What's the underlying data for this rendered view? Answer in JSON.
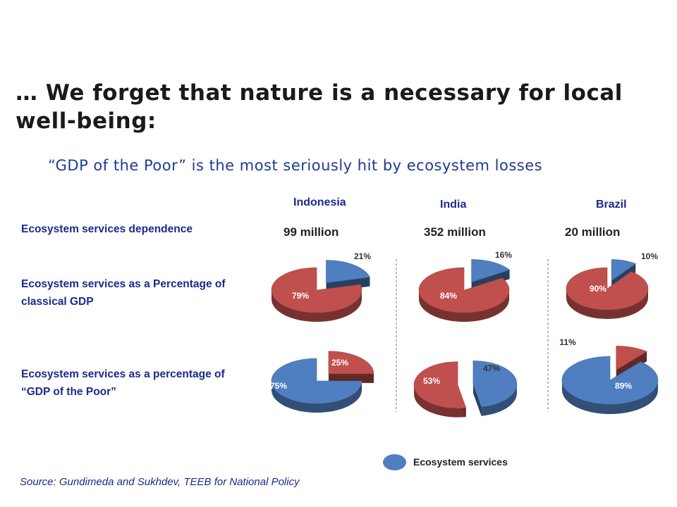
{
  "title": "… We forget that nature is a necessary for local well-being:",
  "subtitle": "“GDP of the Poor” is the most seriously hit by ecosystem losses",
  "row_labels": {
    "dependence": "Ecosystem services dependence",
    "gdp_line1": "Ecosystem services as a Percentage of",
    "gdp_line2": "classical GDP",
    "poor_line1": "Ecosystem services as a percentage of",
    "poor_line2": "“GDP of the Poor”"
  },
  "source": "Source: Gundimeda and Sukhdev, TEEB for National Policy",
  "legend": {
    "label": "Ecosystem services",
    "color": "#4f7fc0"
  },
  "colors": {
    "ecosystem": "#4f7fc0",
    "other": "#c0504d"
  },
  "chart_data": [
    {
      "type": "pie",
      "country": "Indonesia",
      "population": "99 million",
      "measure": "classical GDP",
      "slices": [
        {
          "name": "Ecosystem services",
          "value": 21,
          "label": "21%"
        },
        {
          "value": 79,
          "label": "79%"
        }
      ]
    },
    {
      "type": "pie",
      "country": "India",
      "population": "352 million",
      "measure": "classical GDP",
      "slices": [
        {
          "name": "Ecosystem services",
          "value": 16,
          "label": "16%"
        },
        {
          "value": 84,
          "label": "84%"
        }
      ]
    },
    {
      "type": "pie",
      "country": "Brazil",
      "population": "20 million",
      "measure": "classical GDP",
      "slices": [
        {
          "name": "Ecosystem services",
          "value": 10,
          "label": "10%"
        },
        {
          "value": 90,
          "label": "90%"
        }
      ]
    },
    {
      "type": "pie",
      "country": "Indonesia",
      "measure": "GDP of the Poor",
      "slices": [
        {
          "name": "Ecosystem services",
          "value": 75,
          "label": "75%"
        },
        {
          "value": 25,
          "label": "25%"
        }
      ]
    },
    {
      "type": "pie",
      "country": "India",
      "measure": "GDP of the Poor",
      "slices": [
        {
          "name": "Ecosystem services",
          "value": 47,
          "label": "47%"
        },
        {
          "value": 53,
          "label": "53%"
        }
      ]
    },
    {
      "type": "pie",
      "country": "Brazil",
      "measure": "GDP of the Poor",
      "slices": [
        {
          "name": "Ecosystem services",
          "value": 89,
          "label": "89%"
        },
        {
          "value": 11,
          "label": "11%"
        }
      ]
    }
  ]
}
